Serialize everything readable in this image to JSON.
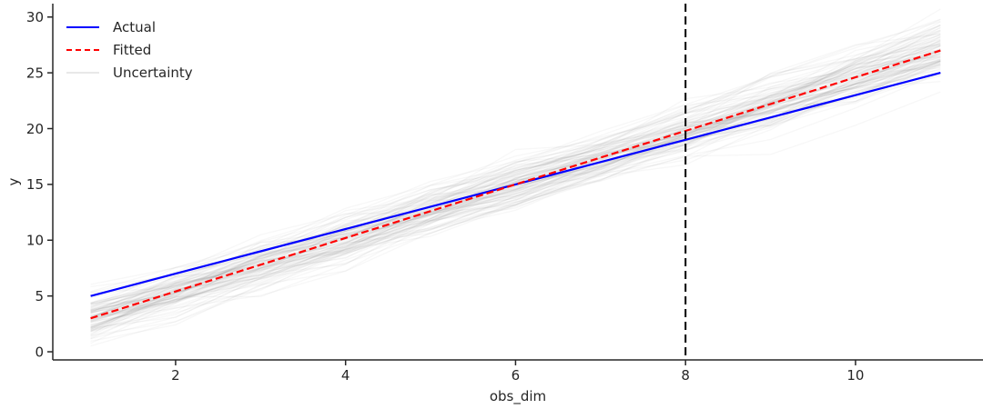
{
  "chart_data": {
    "type": "line",
    "title": "",
    "xlabel": "obs_dim",
    "ylabel": "y",
    "x": [
      1,
      2,
      3,
      4,
      5,
      6,
      7,
      8,
      9,
      10,
      11
    ],
    "series": [
      {
        "name": "Actual",
        "values": [
          5,
          7,
          9,
          11,
          13,
          15,
          17,
          19,
          21,
          23,
          25
        ],
        "color": "#0000ff",
        "style": "solid",
        "width": 2.2
      },
      {
        "name": "Fitted",
        "values": [
          3,
          5.4,
          7.8,
          10.2,
          12.6,
          15,
          17.4,
          19.8,
          22.2,
          24.6,
          27
        ],
        "color": "#ff0000",
        "style": "dashed",
        "width": 2.2,
        "dash": "8 4"
      }
    ],
    "uncertainty": {
      "name": "Uncertainty",
      "n_samples": 100,
      "seed": 7,
      "follows_series": "Fitted",
      "start_sd": 1.1,
      "ar": 0.72,
      "step_sd": 0.8,
      "color": "#707070",
      "alpha": 0.055,
      "line_width": 1.3
    },
    "vline": {
      "x": 8,
      "color": "#000000",
      "style": "dashed",
      "dash": "9 5",
      "width": 2
    },
    "axes": {
      "xticks": [
        2,
        4,
        6,
        8,
        10
      ],
      "yticks": [
        0,
        5,
        10,
        15,
        20,
        25,
        30
      ],
      "xlim": [
        0.555,
        11.5
      ],
      "ylim": [
        -0.73,
        31.2
      ],
      "grid": false,
      "spine_color": "#262626",
      "text_color": "#262626",
      "tick_font_size": 15
    },
    "legend": {
      "position": "upper-left",
      "frame": false,
      "items": [
        {
          "label": "Actual",
          "color": "#0000ff",
          "style": "solid"
        },
        {
          "label": "Fitted",
          "color": "#ff0000",
          "style": "dashed"
        },
        {
          "label": "Uncertainty",
          "color": "#e8e8e8",
          "style": "solid"
        }
      ]
    }
  }
}
